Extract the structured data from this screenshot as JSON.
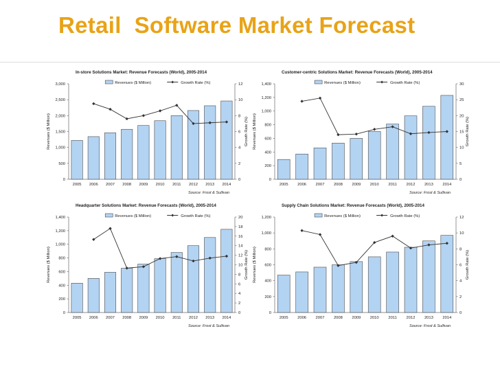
{
  "slide": {
    "title": "Retail  Software Market Forecast"
  },
  "legend": {
    "revenue_label": "Revenues ($ Million)",
    "growth_label": "Growth Rate (%)"
  },
  "colors": {
    "title": "#E8A317",
    "bar_fill": "#B3D3F2",
    "bar_stroke": "#4A4A4A",
    "line": "#333333"
  },
  "chart_data": [
    {
      "type": "bar",
      "title": "In-store Solutions Market: Revenue Forecasts (World), 2005-2014",
      "source": "Source: Frost & Sullivan",
      "categories": [
        "2005",
        "2006",
        "2007",
        "2008",
        "2009",
        "2010",
        "2011",
        "2012",
        "2013",
        "2014"
      ],
      "series": [
        {
          "name": "Revenues ($ Million)",
          "type": "bar",
          "axis": "left",
          "values": [
            1220,
            1340,
            1460,
            1570,
            1690,
            1840,
            2000,
            2160,
            2310,
            2460
          ]
        },
        {
          "name": "Growth Rate (%)",
          "type": "line",
          "axis": "right",
          "values": [
            null,
            9.5,
            8.8,
            7.6,
            8.0,
            8.6,
            9.3,
            7.0,
            7.1,
            7.2
          ]
        }
      ],
      "ylabel": "Revenues ($ Million)",
      "y2label": "Growth Rate (%)",
      "ylim": [
        0,
        3000
      ],
      "yticks": [
        "0",
        "500",
        "1,000",
        "1,500",
        "2,000",
        "2,500",
        "3,000"
      ],
      "y2lim": [
        0,
        12
      ],
      "y2ticks": [
        "0",
        "2",
        "4",
        "6",
        "8",
        "10",
        "12"
      ],
      "legend_position": "top-center",
      "grid": false
    },
    {
      "type": "bar",
      "title": "Customer-centric Solutions Market: Revenue Forecasts (World), 2005-2014",
      "source": "Source: Frost & Sullivan",
      "categories": [
        "2005",
        "2006",
        "2007",
        "2008",
        "2009",
        "2010",
        "2011",
        "2012",
        "2013",
        "2014"
      ],
      "series": [
        {
          "name": "Revenues ($ Million)",
          "type": "bar",
          "axis": "left",
          "values": [
            290,
            370,
            460,
            530,
            600,
            700,
            810,
            930,
            1070,
            1230
          ]
        },
        {
          "name": "Growth Rate (%)",
          "type": "line",
          "axis": "right",
          "values": [
            null,
            24.5,
            25.5,
            14.0,
            14.2,
            15.7,
            16.5,
            14.3,
            14.7,
            15.0
          ]
        }
      ],
      "ylabel": "Revenues ($ Million)",
      "y2label": "Growth Rate (%)",
      "ylim": [
        0,
        1400
      ],
      "yticks": [
        "0",
        "200",
        "400",
        "600",
        "800",
        "1,000",
        "1,200",
        "1,400"
      ],
      "y2lim": [
        0,
        30
      ],
      "y2ticks": [
        "0",
        "5",
        "10",
        "15",
        "20",
        "25",
        "30"
      ],
      "legend_position": "top-center",
      "grid": false
    },
    {
      "type": "bar",
      "title": "Headquarter Solutions Market: Revenue Forecasts (World), 2005-2014",
      "source": "Source: Frost & Sullivan",
      "categories": [
        "2005",
        "2006",
        "2007",
        "2008",
        "2009",
        "2010",
        "2011",
        "2012",
        "2013",
        "2014"
      ],
      "series": [
        {
          "name": "Revenues ($ Million)",
          "type": "bar",
          "axis": "left",
          "values": [
            430,
            500,
            590,
            650,
            710,
            790,
            880,
            980,
            1100,
            1220
          ]
        },
        {
          "name": "Growth Rate (%)",
          "type": "line",
          "axis": "right",
          "values": [
            null,
            15.3,
            17.6,
            9.3,
            9.6,
            11.3,
            11.7,
            10.8,
            11.4,
            11.8
          ]
        }
      ],
      "ylabel": "Revenues ($ Million)",
      "y2label": "Growth Rate (%)",
      "ylim": [
        0,
        1400
      ],
      "yticks": [
        "0",
        "200",
        "400",
        "600",
        "800",
        "1,000",
        "1,200",
        "1,400"
      ],
      "y2lim": [
        0,
        20
      ],
      "y2ticks": [
        "0",
        "2",
        "4",
        "6",
        "8",
        "10",
        "12",
        "14",
        "16",
        "18",
        "20"
      ],
      "legend_position": "top-center",
      "grid": false
    },
    {
      "type": "bar",
      "title": "Supply Chain Solutions Market: Revenue Forecasts (World), 2005-2014",
      "source": "Source: Frost & Sullivan",
      "categories": [
        "2005",
        "2006",
        "2007",
        "2008",
        "2009",
        "2010",
        "2011",
        "2012",
        "2013",
        "2014"
      ],
      "series": [
        {
          "name": "Revenues ($ Million)",
          "type": "bar",
          "axis": "left",
          "values": [
            470,
            510,
            570,
            600,
            640,
            700,
            760,
            820,
            900,
            970
          ]
        },
        {
          "name": "Growth Rate (%)",
          "type": "line",
          "axis": "right",
          "values": [
            null,
            10.3,
            9.8,
            5.9,
            6.3,
            8.8,
            9.6,
            8.1,
            8.5,
            8.7
          ]
        }
      ],
      "ylabel": "Revenues ($ Million)",
      "y2label": "Growth Rate (%)",
      "ylim": [
        0,
        1200
      ],
      "yticks": [
        "0",
        "200",
        "400",
        "600",
        "800",
        "1,000",
        "1,200"
      ],
      "y2lim": [
        0,
        12
      ],
      "y2ticks": [
        "0",
        "2",
        "4",
        "6",
        "8",
        "10",
        "12"
      ],
      "legend_position": "top-center",
      "grid": false
    }
  ]
}
